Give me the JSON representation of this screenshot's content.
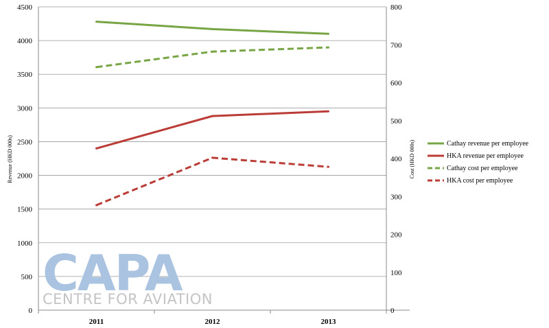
{
  "chart_data": {
    "type": "line",
    "categories": [
      "2011",
      "2012",
      "2013"
    ],
    "y_left": {
      "label": "Revenue (HKD 000s)",
      "min": 0,
      "max": 4500,
      "ticks": [
        0,
        500,
        1000,
        1500,
        2000,
        2500,
        3000,
        3500,
        4000,
        4500
      ]
    },
    "y_right": {
      "label": "Cost (HKD 000s)",
      "min": 0,
      "max": 800,
      "ticks": [
        0,
        100,
        200,
        300,
        400,
        500,
        600,
        700,
        800
      ]
    },
    "grid": true,
    "legend_position": "right",
    "series": [
      {
        "name": "Cathay revenue per employee",
        "axis": "left",
        "values": [
          4280,
          4170,
          4100
        ],
        "color": "#77a544",
        "dashed": false
      },
      {
        "name": "HKA revenue per employee",
        "axis": "left",
        "values": [
          2400,
          2880,
          2950
        ],
        "color": "#bb3c36",
        "dashed": false
      },
      {
        "name": "Cathay cost per employee",
        "axis": "right",
        "values": [
          641,
          682,
          693
        ],
        "color": "#77a544",
        "dashed": true
      },
      {
        "name": "HKA cost per employee",
        "axis": "right",
        "values": [
          277,
          402,
          378
        ],
        "color": "#bb3c36",
        "dashed": true
      }
    ]
  },
  "watermark": {
    "logo_text": "CAPA",
    "tagline": "CENTRE FOR AVIATION"
  }
}
